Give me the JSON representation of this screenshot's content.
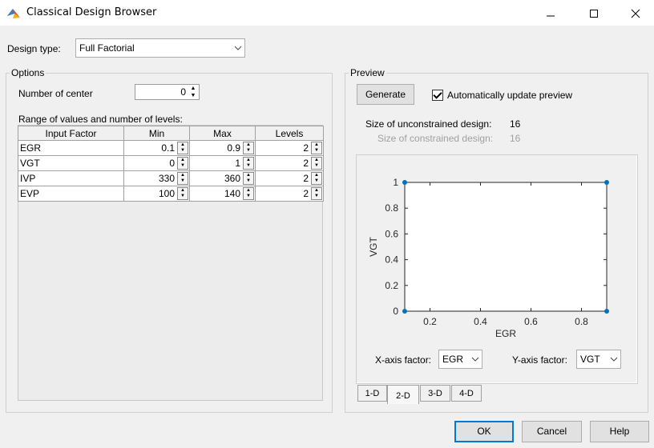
{
  "window": {
    "title": "Classical Design Browser"
  },
  "design_type": {
    "label": "Design type:",
    "value": "Full Factorial"
  },
  "options": {
    "title": "Options",
    "center_label": "Number of center",
    "center_value": "0",
    "range_label": "Range of values and number of levels:",
    "columns": [
      "Input Factor",
      "Min",
      "Max",
      "Levels"
    ],
    "rows": [
      {
        "factor": "EGR",
        "min": "0.1",
        "max": "0.9",
        "levels": "2"
      },
      {
        "factor": "VGT",
        "min": "0",
        "max": "1",
        "levels": "2"
      },
      {
        "factor": "IVP",
        "min": "330",
        "max": "360",
        "levels": "2"
      },
      {
        "factor": "EVP",
        "min": "100",
        "max": "140",
        "levels": "2"
      }
    ]
  },
  "preview": {
    "title": "Preview",
    "generate_label": "Generate",
    "auto_update_label": "Automatically update preview",
    "auto_update_checked": true,
    "unconstrained_label": "Size of unconstrained design:",
    "unconstrained_value": "16",
    "constrained_label": "Size of constrained design:",
    "constrained_value": "16",
    "x_factor_label": "X-axis factor:",
    "x_factor_value": "EGR",
    "y_factor_label": "Y-axis factor:",
    "y_factor_value": "VGT",
    "tabs": [
      "1-D",
      "2-D",
      "3-D",
      "4-D"
    ],
    "active_tab": "2-D"
  },
  "chart_data": {
    "type": "scatter",
    "xlabel": "EGR",
    "ylabel": "VGT",
    "xlim": [
      0.1,
      0.9
    ],
    "ylim": [
      0,
      1
    ],
    "xticks": [
      0.2,
      0.4,
      0.6,
      0.8
    ],
    "yticks": [
      0,
      0.2,
      0.4,
      0.6,
      0.8,
      1
    ],
    "points": [
      {
        "x": 0.1,
        "y": 0
      },
      {
        "x": 0.9,
        "y": 0
      },
      {
        "x": 0.1,
        "y": 1
      },
      {
        "x": 0.9,
        "y": 1
      }
    ],
    "marker_color": "#0072bd",
    "grid": false
  },
  "footer": {
    "ok_label": "OK",
    "cancel_label": "Cancel",
    "help_label": "Help"
  },
  "colors": {
    "accent": "#0078d7",
    "disabled_text": "#a0a0a0"
  }
}
